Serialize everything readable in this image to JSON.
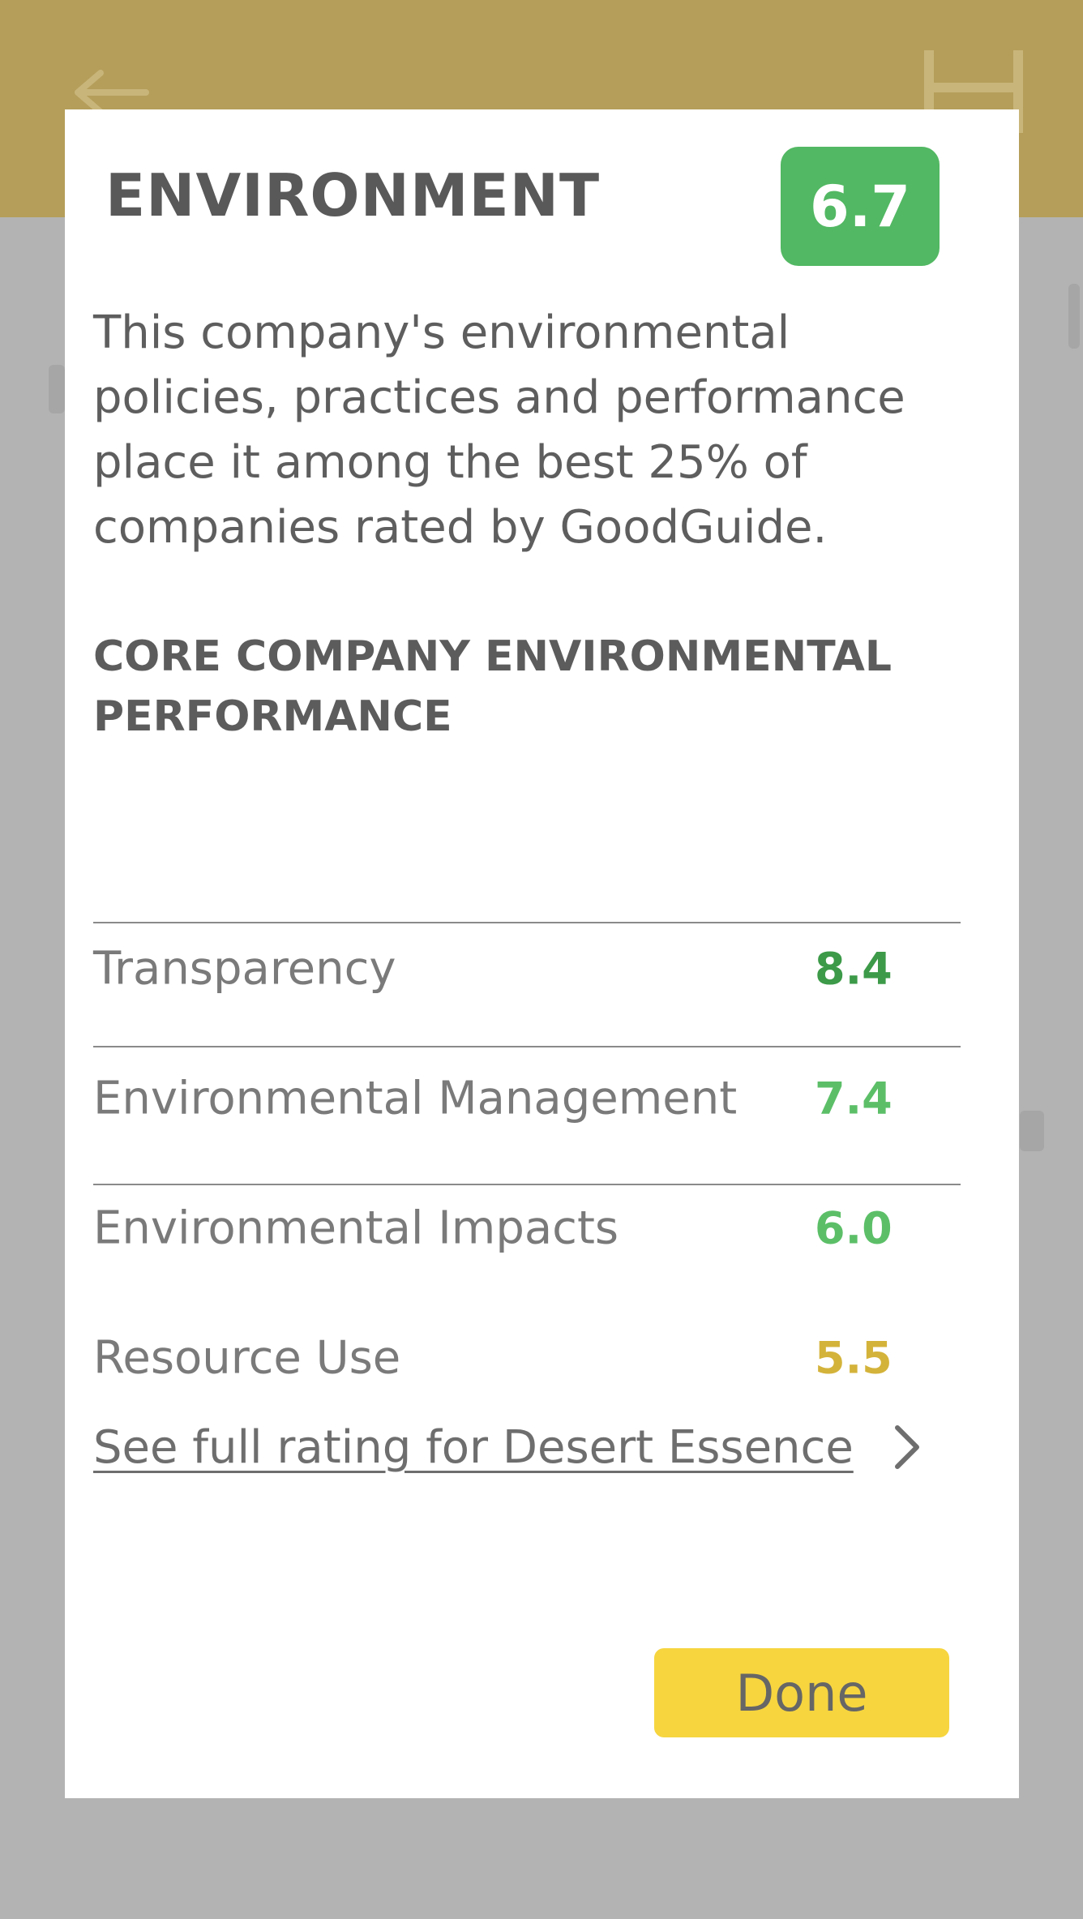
{
  "modal": {
    "title": "ENVIRONMENT",
    "score": "6.7",
    "description": "This company's environmental policies, practices and performance place it among the best 25% of companies rated by GoodGuide.",
    "section_heading": "CORE COMPANY ENVIRONMENTAL PERFORMANCE",
    "metrics": [
      {
        "label": "Transparency",
        "value": "8.4",
        "color": "#3c9a48"
      },
      {
        "label": "Environmental Management",
        "value": "7.4",
        "color": "#5cbf68"
      },
      {
        "label": "Environmental Impacts",
        "value": "6.0",
        "color": "#5cbf68"
      },
      {
        "label": "Resource Use",
        "value": "5.5",
        "color": "#d4b33a"
      }
    ],
    "full_rating_link": "See full rating for Desert Essence",
    "done_label": "Done"
  },
  "colors": {
    "badge": "#52b863",
    "done_button": "#f6d53f",
    "overlay": "#b3b3b3",
    "appbar_dimmed": "#b59e5a"
  },
  "icons": {
    "back": "back-arrow-icon",
    "bookmark": "bookmark-icon",
    "link_chevron": "chevron-right-icon"
  }
}
